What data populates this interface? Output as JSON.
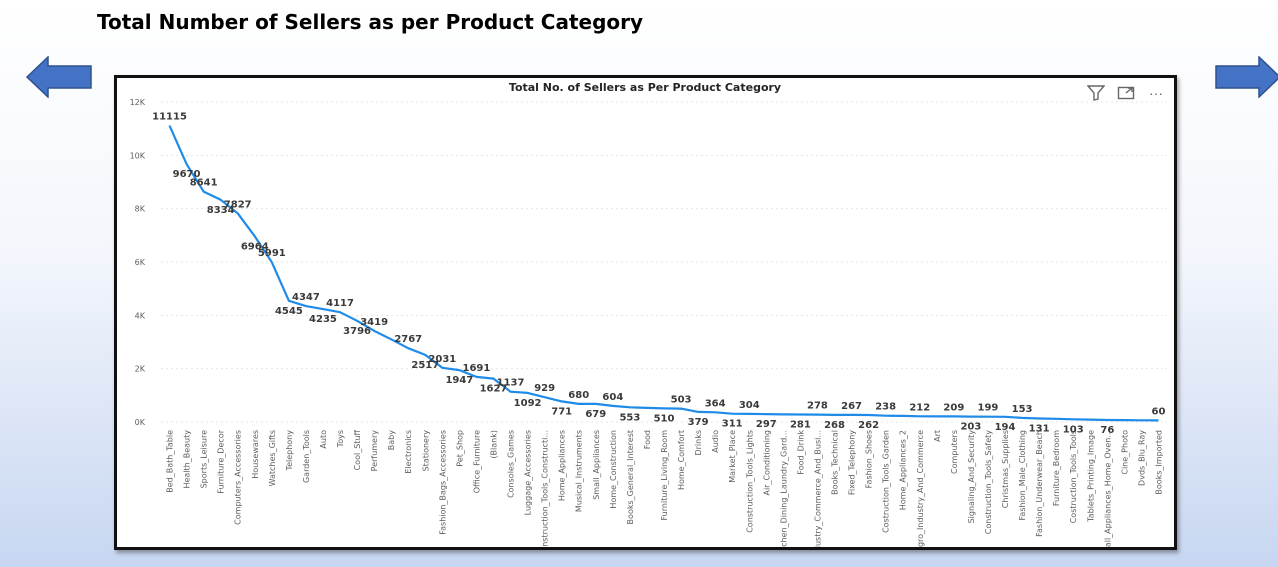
{
  "slide": {
    "title": "Total Number of Sellers as per Product Category"
  },
  "toolbar": {
    "icons": [
      "filter-icon",
      "focus-mode-icon",
      "more-options-icon"
    ],
    "more_glyph": "···"
  },
  "colors": {
    "line": "#1f8be8",
    "arrow_fill": "#4472c4",
    "arrow_stroke": "#2f528f"
  },
  "chart_data": {
    "type": "line",
    "title": "Total No. of Sellers as Per Product Category",
    "xlabel": "",
    "ylabel": "",
    "ylim": [
      0,
      12000
    ],
    "yticks": [
      0,
      2000,
      4000,
      6000,
      8000,
      10000,
      12000
    ],
    "ytick_labels": [
      "0K",
      "2K",
      "4K",
      "6K",
      "8K",
      "10K",
      "12K"
    ],
    "grid": true,
    "categories": [
      "Bed_Bath_Table",
      "Health_Beauty",
      "Sports_Leisure",
      "Furniture_Decor",
      "Computers_Accessories",
      "Housewares",
      "Watches_Gifts",
      "Telephony",
      "Garden_Tools",
      "Auto",
      "Toys",
      "Cool_Stuff",
      "Perfumery",
      "Baby",
      "Electronics",
      "Stationery",
      "Fashion_Bags_Accessories",
      "Pet_Shop",
      "Office_Furniture",
      "(Blank)",
      "Consoles_Games",
      "Luggage_Accessories",
      "Construction_Tools_Constructi...",
      "Home_Appliances",
      "Musical_Instruments",
      "Small_Appliances",
      "Home_Construction",
      "Books_General_Interest",
      "Food",
      "Furniture_Living_Room",
      "Home_Comfort",
      "Drinks",
      "Audio",
      "Market_Place",
      "Construction_Tools_Lights",
      "Air_Conditioning",
      "Kitchen_Dining_Laundry_Gard...",
      "Food_Drink",
      "Industry_Commerce_And_Busi...",
      "Books_Technical",
      "Fixed_Telephony",
      "Fashion_Shoes",
      "Costruction_Tools_Garden",
      "Home_Appliances_2",
      "Agro_Industry_And_Commerce",
      "Art",
      "Computers",
      "Signaling_And_Security",
      "Construction_Tools_Safety",
      "Christmas_Supplies",
      "Fashion_Male_Clothing",
      "Fashion_Underwear_Beach",
      "Furniture_Bedroom",
      "Costruction_Tools_Tools",
      "Tablets_Printing_Image",
      "Small_Appliances_Home_Oven...",
      "Cine_Photo",
      "Dvds_Blu_Ray",
      "Books_Imported"
    ],
    "series": [
      {
        "values": [
          11115,
          9670,
          8641,
          8334,
          7827,
          6964,
          5991,
          4545,
          4347,
          4235,
          4117,
          3796,
          3419,
          3100,
          2767,
          2517,
          2031,
          1947,
          1691,
          1627,
          1137,
          1092,
          929,
          771,
          680,
          679,
          604,
          553,
          530,
          510,
          503,
          379,
          364,
          311,
          304,
          297,
          285,
          281,
          278,
          268,
          267,
          262,
          238,
          230,
          212,
          210,
          209,
          203,
          199,
          194,
          153,
          131,
          120,
          103,
          90,
          76,
          70,
          65,
          60
        ],
        "labels": [
          "11115",
          "9670",
          "8641",
          "8334",
          "7827",
          "6964",
          "5991",
          "4545",
          "4347",
          "4235",
          "4117",
          "3796",
          "3419",
          "",
          "2767",
          "2517",
          "2031",
          "1947",
          "1691",
          "1627",
          "1137",
          "1092",
          "929",
          "771",
          "680",
          "679",
          "604",
          "553",
          "",
          "510",
          "503",
          "379",
          "364",
          "311",
          "304",
          "297",
          "",
          "281",
          "278",
          "268",
          "267",
          "262",
          "238",
          "",
          "212",
          "",
          "209",
          "203",
          "199",
          "194",
          "153",
          "131",
          "",
          "103",
          "",
          "76",
          "",
          "",
          "60"
        ]
      }
    ]
  }
}
